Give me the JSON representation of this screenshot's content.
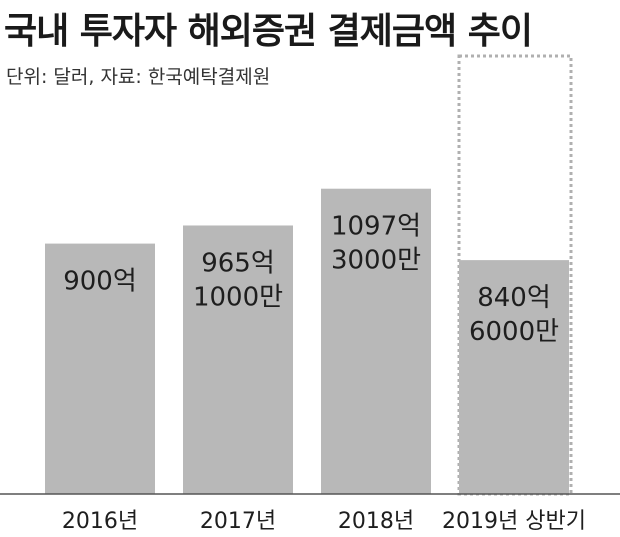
{
  "title": "국내 투자자 해외증권 결제금액 추이",
  "source_note": "단위: 달러, 자료: 한국예탁결제원",
  "chart_data": {
    "type": "bar",
    "title": "국내 투자자 해외증권 결제금액 추이",
    "unit": "달러",
    "source": "한국예탁결제원",
    "categories": [
      "2016년",
      "2017년",
      "2018년",
      "2019년 상반기"
    ],
    "values": [
      90000000000,
      96510000000,
      109730000000,
      84060000000
    ],
    "value_labels": [
      [
        "900억"
      ],
      [
        "965억",
        "1000만"
      ],
      [
        "1097억",
        "3000만"
      ],
      [
        "840억",
        "6000만"
      ]
    ],
    "ylim": [
      0,
      124000000000
    ],
    "grid": false,
    "legend": false,
    "colors": {
      "bar": "#b8b8b8",
      "projection_outline": "#b0b0b0"
    },
    "notes": "2019년 상반기 bar is drawn inside a dashed outline"
  }
}
